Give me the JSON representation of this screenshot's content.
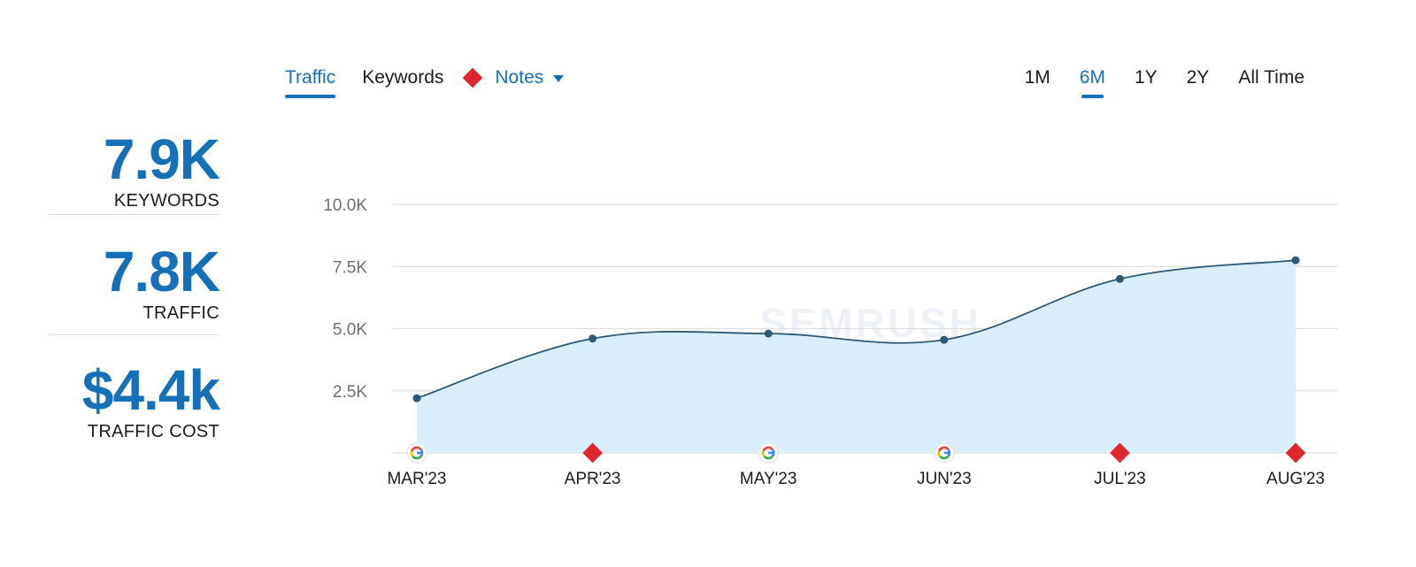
{
  "tabs": {
    "traffic": "Traffic",
    "keywords": "Keywords",
    "notes": "Notes"
  },
  "ranges": [
    "1M",
    "6M",
    "1Y",
    "2Y",
    "All Time"
  ],
  "active_range": "6M",
  "stats": {
    "keywords": {
      "value": "7.9K",
      "label": "KEYWORDS"
    },
    "traffic": {
      "value": "7.8K",
      "label": "TRAFFIC"
    },
    "cost": {
      "value": "$4.4k",
      "label": "TRAFFIC COST"
    }
  },
  "colors": {
    "accent": "#1570b8",
    "line": "#2e5878",
    "area": "#daedfa",
    "note": "#e0262d",
    "grid": "#dedede"
  },
  "watermark": "SEMRUSH",
  "chart_data": {
    "type": "area",
    "categories": [
      "MAR'23",
      "APR'23",
      "MAY'23",
      "JUN'23",
      "JUL'23",
      "AUG'23"
    ],
    "x": [
      "MAR'23",
      "APR'23",
      "MAY'23",
      "JUN'23",
      "JUL'23",
      "AUG'23"
    ],
    "series": [
      {
        "values": [
          2200,
          4600,
          4800,
          4550,
          7000,
          7750
        ]
      }
    ],
    "yticks": [
      "2.5K",
      "5.0K",
      "7.5K",
      "10.0K"
    ],
    "ytick_values": [
      2500,
      5000,
      7500,
      10000
    ],
    "ylim": [
      0,
      10000
    ],
    "grid": true,
    "title": "",
    "xlabel": "",
    "ylabel": "",
    "markers": [
      {
        "category": "MAR'23",
        "kind": "google-update"
      },
      {
        "category": "APR'23",
        "kind": "note"
      },
      {
        "category": "MAY'23",
        "kind": "google-update"
      },
      {
        "category": "JUN'23",
        "kind": "google-update"
      },
      {
        "category": "JUL'23",
        "kind": "note"
      },
      {
        "category": "AUG'23",
        "kind": "note"
      }
    ]
  }
}
